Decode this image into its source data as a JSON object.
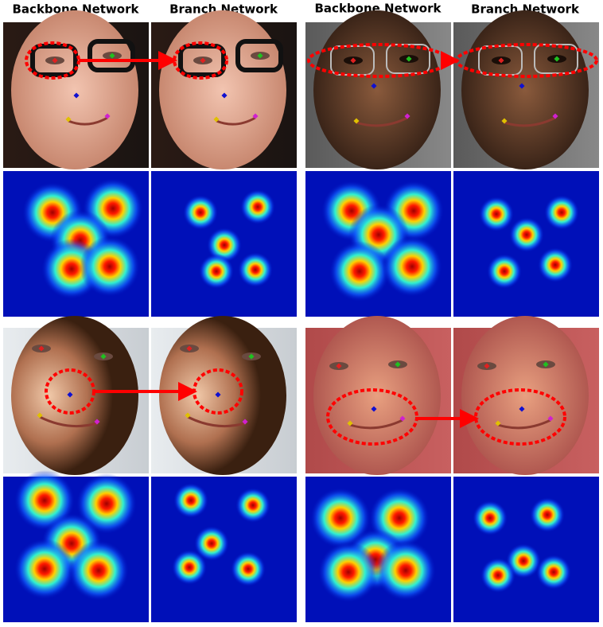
{
  "headers": [
    "Backbone Network",
    "Branch Network",
    "Backbone Network",
    "Branch Network"
  ]
}
